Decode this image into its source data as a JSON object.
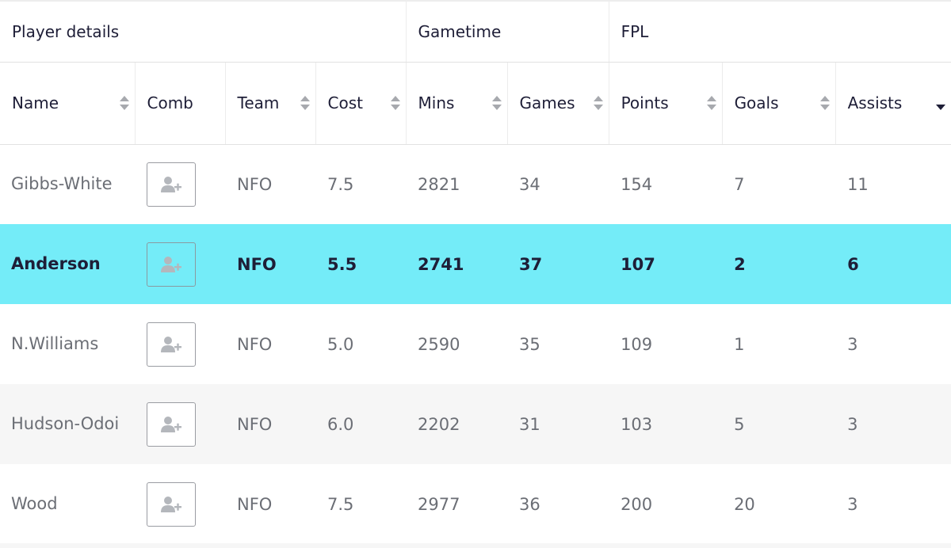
{
  "groups": [
    {
      "label": "Player details",
      "span": 4
    },
    {
      "label": "Gametime",
      "span": 2
    },
    {
      "label": "FPL",
      "span": 3
    }
  ],
  "columns": [
    {
      "key": "name",
      "label": "Name",
      "sortable": true
    },
    {
      "key": "comb",
      "label": "Comb",
      "sortable": false
    },
    {
      "key": "team",
      "label": "Team",
      "sortable": true
    },
    {
      "key": "cost",
      "label": "Cost",
      "sortable": true
    },
    {
      "key": "mins",
      "label": "Mins",
      "sortable": true
    },
    {
      "key": "games",
      "label": "Games",
      "sortable": true
    },
    {
      "key": "points",
      "label": "Points",
      "sortable": true
    },
    {
      "key": "goals",
      "label": "Goals",
      "sortable": true
    },
    {
      "key": "assists",
      "label": "Assists",
      "sortable": true,
      "sorted": "desc"
    }
  ],
  "rows": [
    {
      "name": "Gibbs-White",
      "team": "NFO",
      "cost": "7.5",
      "mins": "2821",
      "games": "34",
      "points": "154",
      "goals": "7",
      "assists": "11",
      "highlighted": false
    },
    {
      "name": "Anderson",
      "team": "NFO",
      "cost": "5.5",
      "mins": "2741",
      "games": "37",
      "points": "107",
      "goals": "2",
      "assists": "6",
      "highlighted": true
    },
    {
      "name": "N.Williams",
      "team": "NFO",
      "cost": "5.0",
      "mins": "2590",
      "games": "35",
      "points": "109",
      "goals": "1",
      "assists": "3",
      "highlighted": false
    },
    {
      "name": "Hudson-Odoi",
      "team": "NFO",
      "cost": "6.0",
      "mins": "2202",
      "games": "31",
      "points": "103",
      "goals": "5",
      "assists": "3",
      "highlighted": false
    },
    {
      "name": "Wood",
      "team": "NFO",
      "cost": "7.5",
      "mins": "2977",
      "games": "36",
      "points": "200",
      "goals": "20",
      "assists": "3",
      "highlighted": false
    }
  ],
  "icons": {
    "comb": "add-user-icon",
    "sort": "sort-arrows-icon",
    "sort_desc": "sort-desc-icon"
  },
  "colors": {
    "highlight": "#74ecf8",
    "text": "#1e1e37",
    "muted": "#6b6e75",
    "alt_row": "#f6f6f6"
  }
}
